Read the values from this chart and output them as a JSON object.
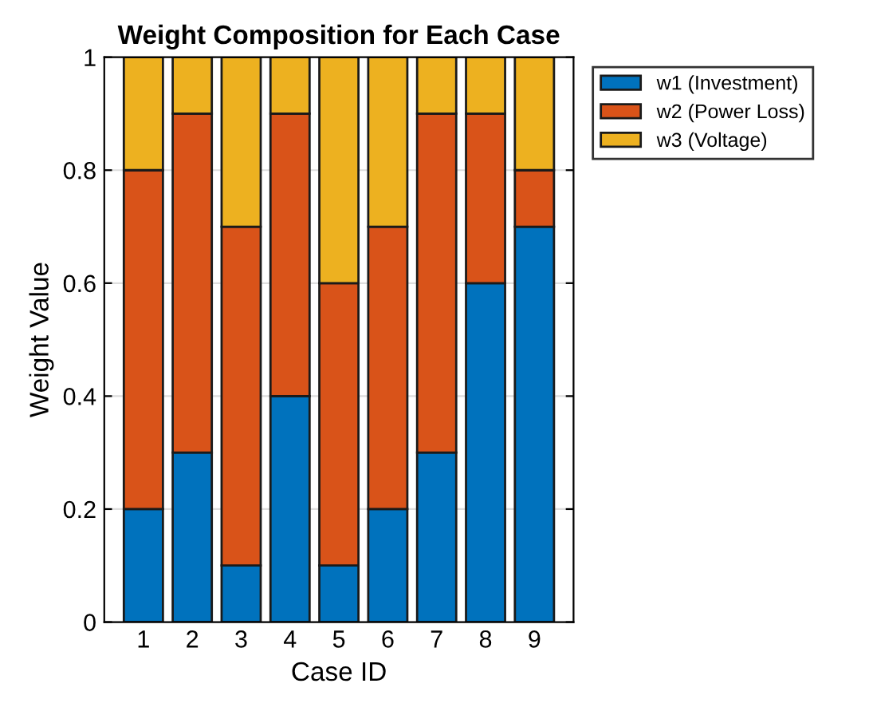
{
  "chart_data": {
    "type": "bar",
    "stacked": true,
    "title": "Weight Composition for Each Case",
    "xlabel": "Case ID",
    "ylabel": "Weight Value",
    "categories": [
      "1",
      "2",
      "3",
      "4",
      "5",
      "6",
      "7",
      "8",
      "9"
    ],
    "series": [
      {
        "name": "w1 (Investment)",
        "color": "#0072bd",
        "values": [
          0.2,
          0.3,
          0.1,
          0.4,
          0.1,
          0.2,
          0.3,
          0.6,
          0.7
        ]
      },
      {
        "name": "w2 (Power Loss)",
        "color": "#d95319",
        "values": [
          0.6,
          0.6,
          0.6,
          0.5,
          0.5,
          0.5,
          0.6,
          0.3,
          0.1
        ]
      },
      {
        "name": "w3 (Voltage)",
        "color": "#edb120",
        "values": [
          0.2,
          0.1,
          0.3,
          0.1,
          0.4,
          0.3,
          0.1,
          0.1,
          0.2
        ]
      }
    ],
    "ylim": [
      0,
      1
    ],
    "yticks": [
      0,
      0.2,
      0.4,
      0.6,
      0.8,
      1
    ],
    "grid": "y",
    "legend": "right"
  }
}
